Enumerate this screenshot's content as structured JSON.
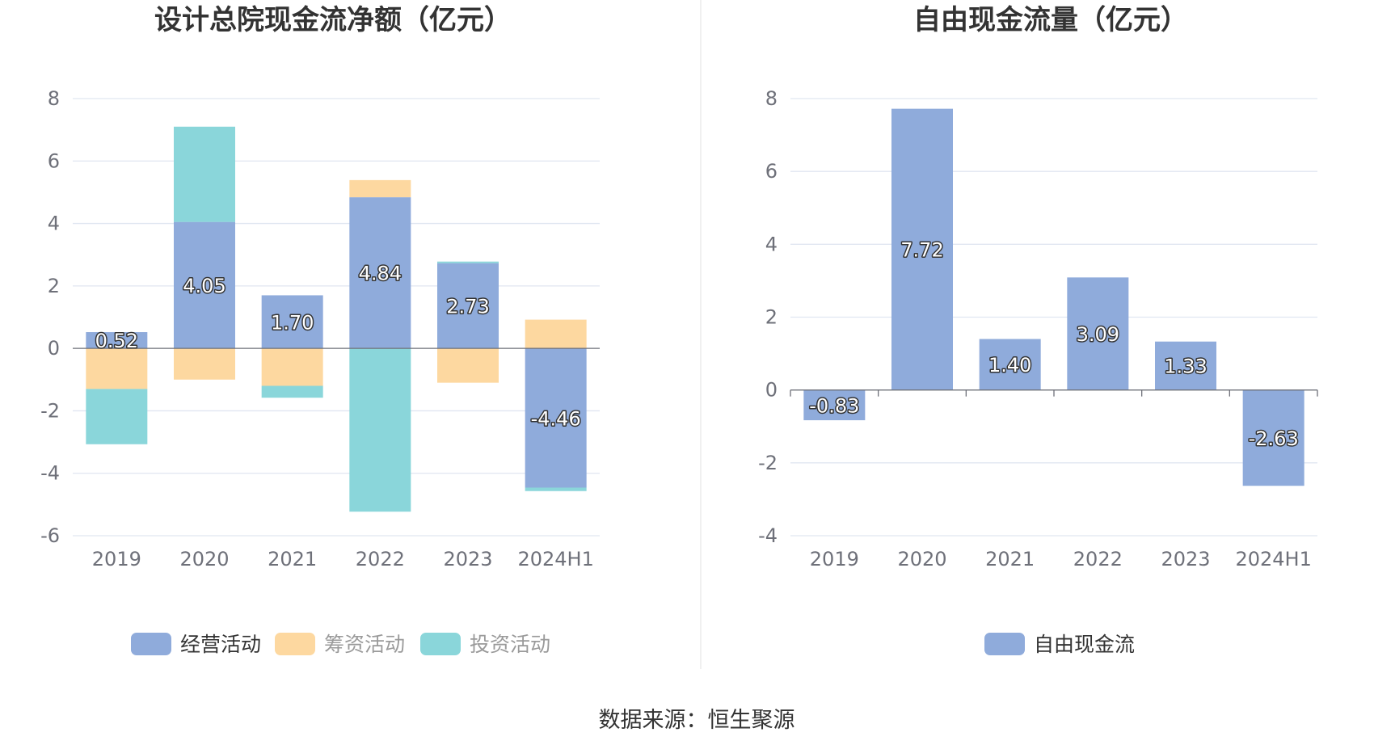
{
  "footer": {
    "source": "数据来源：恒生聚源"
  },
  "chart_data": [
    {
      "type": "bar",
      "stacked": true,
      "title": "设计总院现金流净额（亿元）",
      "categories": [
        "2019",
        "2020",
        "2021",
        "2022",
        "2023",
        "2024H1"
      ],
      "ylim": [
        -6,
        8
      ],
      "yticks": [
        8,
        6,
        4,
        2,
        0,
        -2,
        -4,
        -6
      ],
      "grid": true,
      "legend_position": "bottom",
      "labeled_series": "经营活动",
      "series": [
        {
          "name": "经营活动",
          "color": "#8fabdb",
          "values": [
            0.52,
            4.05,
            1.7,
            4.84,
            2.73,
            -4.46
          ]
        },
        {
          "name": "筹资活动",
          "color": "#fdd8a0",
          "values": [
            -1.3,
            -1.0,
            -1.2,
            0.55,
            -1.1,
            0.92
          ]
        },
        {
          "name": "投资活动",
          "color": "#8ad6da",
          "values": [
            -1.77,
            3.05,
            -0.38,
            -5.23,
            0.05,
            -0.11
          ]
        }
      ],
      "value_labels": [
        "0.52",
        "4.05",
        "1.70",
        "4.84",
        "2.73",
        "-4.46"
      ]
    },
    {
      "type": "bar",
      "title": "自由现金流量（亿元）",
      "categories": [
        "2019",
        "2020",
        "2021",
        "2022",
        "2023",
        "2024H1"
      ],
      "ylim": [
        -4,
        8
      ],
      "yticks": [
        8,
        6,
        4,
        2,
        0,
        -2,
        -4
      ],
      "grid": true,
      "legend_position": "bottom",
      "series": [
        {
          "name": "自由现金流",
          "color": "#8fabdb",
          "values": [
            -0.83,
            7.72,
            1.4,
            3.09,
            1.33,
            -2.63
          ]
        }
      ],
      "value_labels": [
        "-0.83",
        "7.72",
        "1.40",
        "3.09",
        "1.33",
        "-2.63"
      ]
    }
  ]
}
